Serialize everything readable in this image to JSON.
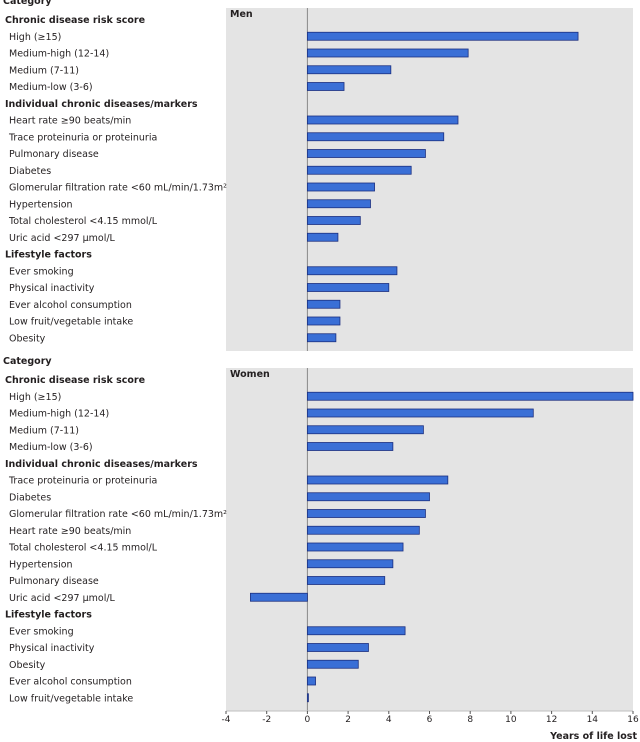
{
  "chart_data": [
    {
      "type": "bar",
      "orientation": "horizontal",
      "category_heading": "Category",
      "panel_title": "Men",
      "groups": [
        {
          "name": "Chronic disease risk score",
          "items": [
            {
              "label": "High (≥15)",
              "value": 13.3
            },
            {
              "label": "Medium-high (12-14)",
              "value": 7.9
            },
            {
              "label": "Medium (7-11)",
              "value": 4.1
            },
            {
              "label": "Medium-low (3-6)",
              "value": 1.8
            }
          ]
        },
        {
          "name": "Individual chronic diseases/markers",
          "items": [
            {
              "label": "Heart rate ≥90 beats/min",
              "value": 7.4
            },
            {
              "label": "Trace proteinuria or proteinuria",
              "value": 6.7
            },
            {
              "label": "Pulmonary disease",
              "value": 5.8
            },
            {
              "label": "Diabetes",
              "value": 5.1
            },
            {
              "label": "Glomerular filtration rate <60 mL/min/1.73m²",
              "value": 3.3
            },
            {
              "label": "Hypertension",
              "value": 3.1
            },
            {
              "label": "Total cholesterol <4.15 mmol/L",
              "value": 2.6
            },
            {
              "label": "Uric acid <297 µmol/L",
              "value": 1.5
            }
          ]
        },
        {
          "name": "Lifestyle factors",
          "items": [
            {
              "label": "Ever smoking",
              "value": 4.4
            },
            {
              "label": "Physical inactivity",
              "value": 4.0
            },
            {
              "label": "Ever alcohol consumption",
              "value": 1.6
            },
            {
              "label": "Low fruit/vegetable intake",
              "value": 1.6
            },
            {
              "label": "Obesity",
              "value": 1.4
            }
          ]
        }
      ],
      "xlim": [
        -4,
        16
      ]
    },
    {
      "type": "bar",
      "orientation": "horizontal",
      "category_heading": "Category",
      "panel_title": "Women",
      "groups": [
        {
          "name": "Chronic disease risk score",
          "items": [
            {
              "label": "High (≥15)",
              "value": 16.0
            },
            {
              "label": "Medium-high (12-14)",
              "value": 11.1
            },
            {
              "label": "Medium (7-11)",
              "value": 5.7
            },
            {
              "label": "Medium-low (3-6)",
              "value": 4.2
            }
          ]
        },
        {
          "name": "Individual chronic diseases/markers",
          "items": [
            {
              "label": "Trace proteinuria or proteinuria",
              "value": 6.9
            },
            {
              "label": "Diabetes",
              "value": 6.0
            },
            {
              "label": "Glomerular filtration rate <60 mL/min/1.73m²",
              "value": 5.8
            },
            {
              "label": "Heart rate ≥90 beats/min",
              "value": 5.5
            },
            {
              "label": "Total cholesterol <4.15 mmol/L",
              "value": 4.7
            },
            {
              "label": "Hypertension",
              "value": 4.2
            },
            {
              "label": "Pulmonary disease",
              "value": 3.8
            },
            {
              "label": "Uric acid <297 µmol/L",
              "value": -2.8
            }
          ]
        },
        {
          "name": "Lifestyle factors",
          "items": [
            {
              "label": "Ever smoking",
              "value": 4.8
            },
            {
              "label": "Physical inactivity",
              "value": 3.0
            },
            {
              "label": "Obesity",
              "value": 2.5
            },
            {
              "label": "Ever alcohol consumption",
              "value": 0.4
            },
            {
              "label": "Low fruit/vegetable intake",
              "value": 0.05
            }
          ]
        }
      ],
      "xlim": [
        -4,
        16
      ]
    }
  ],
  "x_axis": {
    "ticks": [
      -4,
      -2,
      0,
      2,
      4,
      6,
      8,
      10,
      12,
      14,
      16
    ],
    "label": "Years of life lost"
  },
  "colors": {
    "bar_fill": "#3a6fd6",
    "bar_stroke": "#1b2f80",
    "panel_bg": "#e4e4e4",
    "zero_line": "#888888",
    "text": "#231f20"
  }
}
